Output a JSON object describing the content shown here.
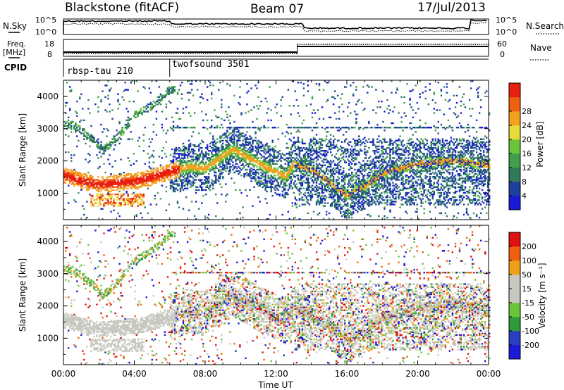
{
  "header": {
    "station": "Blackstone (fitACF)",
    "beam": "Beam 07",
    "date": "17/Jul/2013"
  },
  "summary_panels": {
    "nsky_label": "N.Sky",
    "nsearch_label": "N.Search",
    "noise_ticks": [
      "10^5",
      "10^0"
    ],
    "freq_label_top": "Freq.",
    "freq_label_unit": "[MHz]",
    "freq_ticks_left": [
      "18",
      "8"
    ],
    "nave_label": "Nave",
    "nave_ticks_right": [
      "60",
      "0"
    ],
    "cpid_label": "CPID",
    "programs": [
      {
        "name": "rbsp-tau 210",
        "start_hour": 0
      },
      {
        "name": "twofsound 3501",
        "start_hour": 6
      }
    ]
  },
  "chart_data": [
    {
      "type": "heatmap",
      "name": "power",
      "ylabel": "Slant Range [km]",
      "xlabel": "Time UT",
      "x_ticks": [
        "00:00",
        "04:00",
        "08:00",
        "12:00",
        "16:00",
        "20:00",
        "00:00"
      ],
      "xlim_hours": [
        0,
        24
      ],
      "ylim": [
        180,
        4500
      ],
      "y_ticks": [
        1000,
        2000,
        3000,
        4000
      ],
      "colorbar": {
        "label": "Power [dB]",
        "ticks": [
          4,
          8,
          12,
          16,
          20,
          24,
          28
        ],
        "range": [
          0,
          32
        ],
        "colors": [
          "#1a1ad8",
          "#1f3f9f",
          "#2e7a5a",
          "#3f9f4a",
          "#6cc43a",
          "#e6dc3a",
          "#f4a020",
          "#f06010",
          "#e82010"
        ]
      },
      "features": [
        {
          "desc": "main echo band",
          "path": [
            [
              0,
              1550
            ],
            [
              1,
              1350
            ],
            [
              2,
              1250
            ],
            [
              3,
              1300
            ],
            [
              4,
              1350
            ],
            [
              5,
              1480
            ],
            [
              6,
              1650
            ],
            [
              7,
              1800
            ],
            [
              8,
              1750
            ],
            [
              9,
              2150
            ],
            [
              9.5,
              2350
            ],
            [
              10,
              2200
            ],
            [
              11,
              1900
            ],
            [
              12.5,
              1500
            ],
            [
              13,
              1900
            ],
            [
              14,
              1700
            ],
            [
              15,
              1300
            ],
            [
              16,
              900
            ],
            [
              17,
              1200
            ],
            [
              18,
              1600
            ],
            [
              19,
              1750
            ],
            [
              20,
              1900
            ],
            [
              22,
              2000
            ],
            [
              24,
              1850
            ]
          ]
        },
        {
          "desc": "upper arc",
          "path": [
            [
              0.5,
              3100
            ],
            [
              1.5,
              2700
            ],
            [
              2.2,
              2300
            ],
            [
              3,
              2700
            ],
            [
              4,
              3400
            ],
            [
              5,
              3700
            ],
            [
              6,
              4200
            ]
          ]
        },
        {
          "desc": "horizontal band",
          "range_km": 3000
        }
      ]
    },
    {
      "type": "heatmap",
      "name": "velocity",
      "ylabel": "Slant Range [km]",
      "xlabel": "Time UT",
      "x_ticks": [
        "00:00",
        "04:00",
        "08:00",
        "12:00",
        "16:00",
        "20:00",
        "00:00"
      ],
      "xlim_hours": [
        0,
        24
      ],
      "ylim": [
        180,
        4500
      ],
      "y_ticks": [
        1000,
        2000,
        3000,
        4000
      ],
      "colorbar": {
        "label": "Velocity [m s⁻¹]",
        "ticks": [
          200,
          100,
          50,
          15,
          -15,
          -50,
          -100,
          -200
        ],
        "colors": [
          "#1a1ad8",
          "#2840c0",
          "#2e9a3a",
          "#6cc43a",
          "#c8c8c0",
          "#c8c8c0",
          "#f0a018",
          "#f06010",
          "#e01010"
        ]
      }
    }
  ]
}
